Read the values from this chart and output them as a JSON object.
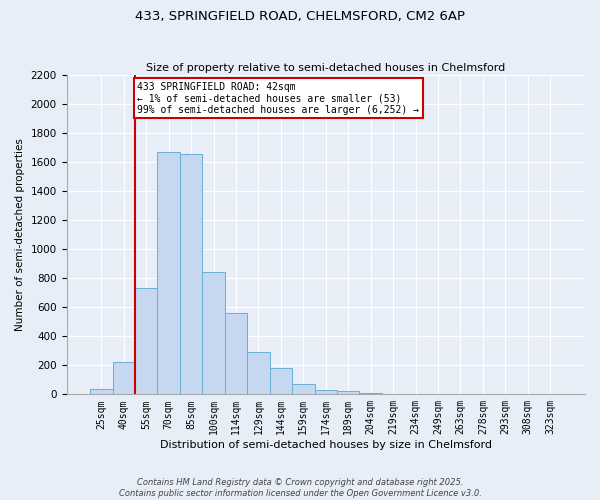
{
  "title": "433, SPRINGFIELD ROAD, CHELMSFORD, CM2 6AP",
  "subtitle": "Size of property relative to semi-detached houses in Chelmsford",
  "xlabel": "Distribution of semi-detached houses by size in Chelmsford",
  "ylabel": "Number of semi-detached properties",
  "bar_labels": [
    "25sqm",
    "40sqm",
    "55sqm",
    "70sqm",
    "85sqm",
    "100sqm",
    "114sqm",
    "129sqm",
    "144sqm",
    "159sqm",
    "174sqm",
    "189sqm",
    "204sqm",
    "219sqm",
    "234sqm",
    "249sqm",
    "263sqm",
    "278sqm",
    "293sqm",
    "308sqm",
    "323sqm"
  ],
  "bar_heights": [
    40,
    225,
    730,
    1670,
    1655,
    840,
    560,
    295,
    180,
    70,
    30,
    20,
    10,
    5,
    2,
    1,
    0,
    0,
    0,
    0,
    0
  ],
  "bar_color": "#c5d8f0",
  "bar_edge_color": "#6baed6",
  "property_line_x": 1.5,
  "annotation_label": "433 SPRINGFIELD ROAD: 42sqm",
  "annotation_line1": "← 1% of semi-detached houses are smaller (53)",
  "annotation_line2": "99% of semi-detached houses are larger (6,252) →",
  "annotation_box_color": "#ffffff",
  "annotation_box_edge": "#cc0000",
  "vline_color": "#cc0000",
  "ylim": [
    0,
    2200
  ],
  "yticks": [
    0,
    200,
    400,
    600,
    800,
    1000,
    1200,
    1400,
    1600,
    1800,
    2000,
    2200
  ],
  "bg_color": "#e8eef8",
  "footer1": "Contains HM Land Registry data © Crown copyright and database right 2025.",
  "footer2": "Contains public sector information licensed under the Open Government Licence v3.0."
}
